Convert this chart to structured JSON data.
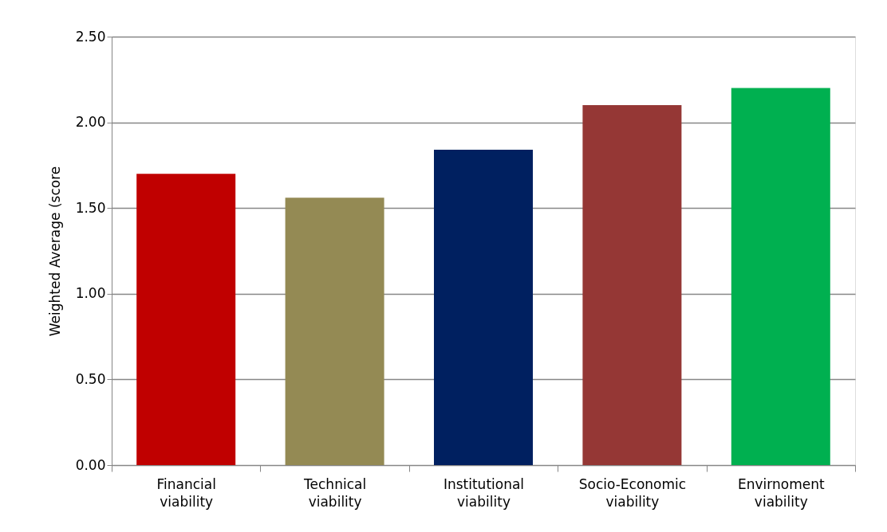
{
  "chart_data": {
    "type": "bar",
    "categories": [
      "Financial viability",
      "Technical viability",
      "Institutional viability",
      "Socio-Economic viability",
      "Envirnoment viability"
    ],
    "values": [
      1.7,
      1.56,
      1.84,
      2.1,
      2.2
    ],
    "colors": [
      "#c00000",
      "#948a54",
      "#002060",
      "#953735",
      "#00b050"
    ],
    "ylabel": "Weighted Average (score",
    "ylim": [
      0,
      2.5
    ],
    "yticks": [
      {
        "value": 0,
        "label": "0.00"
      },
      {
        "value": 0.5,
        "label": "0.50"
      },
      {
        "value": 1,
        "label": "1.00"
      },
      {
        "value": 1.5,
        "label": "1.50"
      },
      {
        "value": 2,
        "label": "2.00"
      },
      {
        "value": 2.5,
        "label": "2.50"
      }
    ],
    "grid": "y",
    "legend": false
  }
}
